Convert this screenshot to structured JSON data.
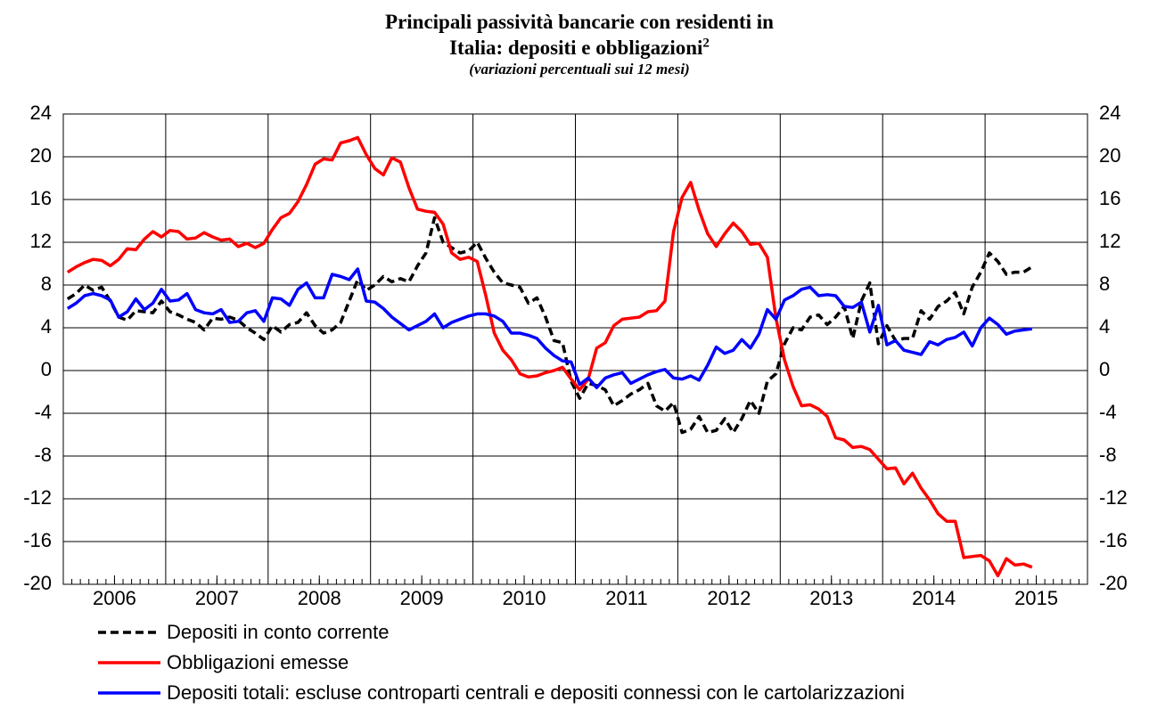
{
  "chart_data": {
    "type": "line",
    "title": "Principali passività bancarie con residenti in Italia: depositi e obbligazioni",
    "title_note": "2",
    "subtitle": "(variazioni percentuali sui 12 mesi)",
    "categories": [
      null,
      null,
      null,
      null,
      null,
      "2006",
      null,
      null,
      null,
      null,
      null,
      null,
      null,
      null,
      null,
      null,
      null,
      "2007",
      null,
      null,
      null,
      null,
      null,
      null,
      null,
      null,
      null,
      null,
      null,
      "2008",
      null,
      null,
      null,
      null,
      null,
      null,
      null,
      null,
      null,
      null,
      null,
      "2009",
      null,
      null,
      null,
      null,
      null,
      null,
      null,
      null,
      null,
      null,
      null,
      "2010",
      null,
      null,
      null,
      null,
      null,
      null,
      null,
      null,
      null,
      null,
      null,
      "2011",
      null,
      null,
      null,
      null,
      null,
      null,
      null,
      null,
      null,
      null,
      null,
      "2012",
      null,
      null,
      null,
      null,
      null,
      null,
      null,
      null,
      null,
      null,
      null,
      "2013",
      null,
      null,
      null,
      null,
      null,
      null,
      null,
      null,
      null,
      null,
      null,
      "2014",
      null,
      null,
      null,
      null,
      null,
      null,
      null,
      null,
      null,
      null,
      null,
      "2015",
      null,
      null,
      null,
      null,
      null,
      null
    ],
    "ylim": [
      -20,
      24
    ],
    "yticks": [
      -20,
      -16,
      -12,
      -8,
      -4,
      0,
      4,
      8,
      12,
      16,
      20,
      24
    ],
    "y2lim": [
      -20,
      24
    ],
    "y2ticks": [
      -20,
      -16,
      -12,
      -8,
      -4,
      0,
      4,
      8,
      12,
      16,
      20,
      24
    ],
    "grid": true,
    "series": [
      {
        "name": "Depositi in conto corrente",
        "color": "#000000",
        "dashed": true,
        "values": [
          6.7,
          7.2,
          8.0,
          7.5,
          7.8,
          6.5,
          5.0,
          4.7,
          5.6,
          5.5,
          5.4,
          6.5,
          5.5,
          5.2,
          4.8,
          4.5,
          3.8,
          4.9,
          4.8,
          5.0,
          4.7,
          4.0,
          3.5,
          2.9,
          4.2,
          3.6,
          4.3,
          4.5,
          5.4,
          4.2,
          3.5,
          3.8,
          4.5,
          6.5,
          8.5,
          7.5,
          8.0,
          8.8,
          8.3,
          8.6,
          8.3,
          9.8,
          11.0,
          14.3,
          12.0,
          11.5,
          11.0,
          11.2,
          12.0,
          10.5,
          9.2,
          8.2,
          8.0,
          7.8,
          6.3,
          6.8,
          5.0,
          2.8,
          2.6,
          -1.0,
          -2.6,
          -1.2,
          -1.4,
          -1.8,
          -3.3,
          -2.8,
          -2.2,
          -1.8,
          -1.2,
          -3.3,
          -3.8,
          -3.0,
          -5.8,
          -5.5,
          -4.3,
          -5.8,
          -5.6,
          -4.5,
          -5.8,
          -4.5,
          -2.8,
          -4.0,
          -1.0,
          -0.3,
          2.5,
          4.0,
          3.8,
          5.0,
          5.2,
          4.3,
          5.0,
          6.0,
          3.0,
          6.5,
          8.2,
          2.5,
          4.2,
          2.8,
          3.0,
          3.0,
          5.6,
          4.8,
          6.0,
          6.5,
          7.3,
          5.3,
          7.8,
          9.2,
          11.0,
          10.2,
          9.0,
          9.2,
          9.2,
          9.7,
          null,
          null,
          null,
          null,
          null,
          null
        ]
      },
      {
        "name": "Obbligazioni emesse",
        "color": "#ff0000",
        "dashed": false,
        "values": [
          9.2,
          9.7,
          10.1,
          10.4,
          10.3,
          9.8,
          10.4,
          11.4,
          11.3,
          12.3,
          13.0,
          12.5,
          13.1,
          13.0,
          12.3,
          12.4,
          12.9,
          12.5,
          12.2,
          12.3,
          11.6,
          11.9,
          11.5,
          11.9,
          13.2,
          14.3,
          14.7,
          15.8,
          17.4,
          19.3,
          19.8,
          19.7,
          21.3,
          21.5,
          21.8,
          20.2,
          18.9,
          18.3,
          19.9,
          19.5,
          17.1,
          15.1,
          14.9,
          14.8,
          13.7,
          11.0,
          10.4,
          10.6,
          10.2,
          7.0,
          3.5,
          1.9,
          1.0,
          -0.3,
          -0.6,
          -0.5,
          -0.2,
          0.0,
          0.3,
          -0.8,
          -1.8,
          -0.8,
          2.1,
          2.6,
          4.2,
          4.8,
          4.9,
          5.0,
          5.5,
          5.6,
          6.5,
          13.0,
          16.2,
          17.6,
          15.0,
          12.8,
          11.6,
          12.8,
          13.8,
          13.0,
          11.8,
          11.9,
          10.6,
          4.9,
          1.0,
          -1.5,
          -3.3,
          -3.2,
          -3.6,
          -4.3,
          -6.3,
          -6.5,
          -7.2,
          -7.1,
          -7.4,
          -8.3,
          -9.2,
          -9.1,
          -10.6,
          -9.6,
          -11.0,
          -12.1,
          -13.4,
          -14.1,
          -14.1,
          -17.5,
          -17.4,
          -17.3,
          -17.8,
          -19.2,
          -17.6,
          -18.2,
          -18.1,
          -18.4,
          null,
          null,
          null,
          null,
          null,
          null
        ]
      },
      {
        "name": "Depositi totali: escluse controparti centrali e depositi connessi con le cartolarizzazioni",
        "color": "#0000ff",
        "dashed": false,
        "values": [
          5.8,
          6.3,
          7.0,
          7.2,
          7.0,
          6.6,
          5.0,
          5.5,
          6.7,
          5.7,
          6.3,
          7.6,
          6.5,
          6.6,
          7.2,
          5.7,
          5.4,
          5.3,
          5.7,
          4.5,
          4.6,
          5.4,
          5.6,
          4.6,
          6.8,
          6.7,
          6.1,
          7.6,
          8.2,
          6.8,
          6.8,
          9.0,
          8.8,
          8.5,
          9.5,
          6.5,
          6.4,
          5.8,
          5.0,
          4.4,
          3.8,
          4.2,
          4.6,
          5.3,
          4.0,
          4.5,
          4.8,
          5.1,
          5.3,
          5.3,
          5.1,
          4.6,
          3.5,
          3.5,
          3.3,
          3.0,
          2.1,
          1.4,
          0.9,
          0.8,
          -1.3,
          -0.7,
          -1.6,
          -0.7,
          -0.4,
          -0.2,
          -1.2,
          -0.8,
          -0.4,
          -0.1,
          0.1,
          -0.7,
          -0.8,
          -0.5,
          -0.9,
          0.5,
          2.2,
          1.6,
          1.9,
          2.9,
          2.1,
          3.4,
          5.7,
          4.8,
          6.6,
          7.0,
          7.6,
          7.8,
          7.0,
          7.1,
          7.0,
          6.0,
          5.9,
          6.4,
          3.6,
          6.1,
          2.4,
          2.8,
          1.9,
          1.7,
          1.5,
          2.7,
          2.4,
          2.9,
          3.1,
          3.6,
          2.3,
          4.0,
          4.9,
          4.3,
          3.4,
          3.7,
          3.8,
          3.9,
          null,
          null,
          null,
          null,
          null,
          null
        ]
      }
    ]
  }
}
